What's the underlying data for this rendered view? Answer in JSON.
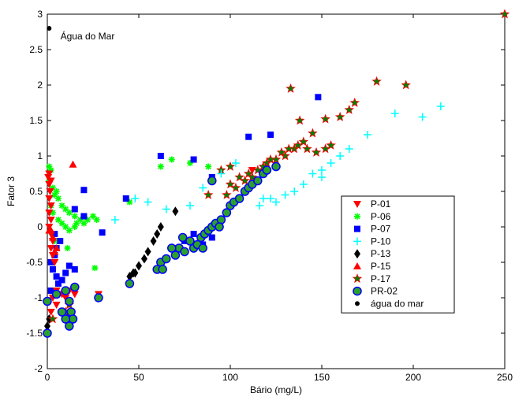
{
  "chart_data": {
    "type": "scatter",
    "title": "",
    "xlabel": "Bário (mg/L)",
    "ylabel": "Fator 3",
    "xlim": [
      0,
      250
    ],
    "ylim": [
      -2,
      3
    ],
    "xticks": [
      0,
      50,
      100,
      150,
      200,
      250
    ],
    "yticks": [
      -2,
      -1.5,
      -1,
      -0.5,
      0,
      0.5,
      1,
      1.5,
      2,
      2.5,
      3
    ],
    "grid": false,
    "legend_position": "lower-right",
    "annotation": {
      "text": "Água do Mar",
      "x": 2,
      "y": 2.8
    },
    "series": [
      {
        "name": "P-01",
        "marker": "triangle-down",
        "color": "#ff0000",
        "points": [
          [
            0.5,
            0.7
          ],
          [
            1,
            0.6
          ],
          [
            1,
            0.4
          ],
          [
            1.5,
            0.5
          ],
          [
            2,
            0.3
          ],
          [
            1,
            0.2
          ],
          [
            2,
            0.1
          ],
          [
            1,
            0
          ],
          [
            2,
            -0.1
          ],
          [
            3,
            -0.2
          ],
          [
            2,
            -0.3
          ],
          [
            3,
            -0.4
          ],
          [
            4,
            -0.5
          ],
          [
            5,
            -0.9
          ],
          [
            8,
            -0.95
          ],
          [
            10,
            -1.0
          ],
          [
            12,
            -0.9
          ],
          [
            15,
            -0.95
          ],
          [
            28,
            -0.95
          ],
          [
            5,
            -1.1
          ],
          [
            2,
            -1.2
          ],
          [
            3,
            -1.0
          ],
          [
            1,
            0.75
          ],
          [
            2,
            0.65
          ],
          [
            112,
            0.8
          ]
        ]
      },
      {
        "name": "P-06",
        "marker": "asterisk",
        "color": "#00ff00",
        "points": [
          [
            1,
            0.85
          ],
          [
            2,
            0.8
          ],
          [
            1,
            0.65
          ],
          [
            3,
            0.55
          ],
          [
            5,
            0.5
          ],
          [
            4,
            0.45
          ],
          [
            6,
            0.4
          ],
          [
            8,
            0.3
          ],
          [
            10,
            0.25
          ],
          [
            12,
            0.2
          ],
          [
            15,
            0.15
          ],
          [
            18,
            0.1
          ],
          [
            20,
            0.05
          ],
          [
            22,
            0.1
          ],
          [
            25,
            0.15
          ],
          [
            27,
            0.1
          ],
          [
            8,
            0.05
          ],
          [
            10,
            0
          ],
          [
            12,
            -0.05
          ],
          [
            15,
            0
          ],
          [
            16,
            0.05
          ],
          [
            6,
            0.1
          ],
          [
            3,
            0.2
          ],
          [
            2,
            0.3
          ],
          [
            45,
            0.35
          ],
          [
            62,
            0.85
          ],
          [
            68,
            0.95
          ],
          [
            78,
            0.9
          ],
          [
            88,
            0.85
          ],
          [
            26,
            -0.58
          ],
          [
            11,
            -0.3
          ],
          [
            4,
            -0.2
          ]
        ]
      },
      {
        "name": "P-07",
        "marker": "square",
        "color": "#0000ff",
        "points": [
          [
            20,
            0.52
          ],
          [
            15,
            0.25
          ],
          [
            20,
            0.15
          ],
          [
            30,
            -0.08
          ],
          [
            43,
            0.4
          ],
          [
            62,
            1.0
          ],
          [
            80,
            0.95
          ],
          [
            90,
            0.7
          ],
          [
            110,
            1.27
          ],
          [
            122,
            1.3
          ],
          [
            148,
            1.83
          ],
          [
            2,
            -0.5
          ],
          [
            3,
            -0.6
          ],
          [
            5,
            -0.7
          ],
          [
            6,
            -0.8
          ],
          [
            8,
            -0.75
          ],
          [
            10,
            -0.65
          ],
          [
            12,
            -0.55
          ],
          [
            15,
            -0.6
          ],
          [
            4,
            -0.4
          ],
          [
            5,
            -0.3
          ],
          [
            7,
            -0.2
          ],
          [
            2,
            -0.9
          ],
          [
            4,
            -0.1
          ],
          [
            70,
            -0.3
          ],
          [
            75,
            -0.2
          ],
          [
            80,
            -0.1
          ],
          [
            85,
            -0.25
          ],
          [
            90,
            -0.15
          ]
        ]
      },
      {
        "name": "P-10",
        "marker": "plus",
        "color": "#00ffff",
        "points": [
          [
            37,
            0.1
          ],
          [
            48,
            0.4
          ],
          [
            55,
            0.35
          ],
          [
            65,
            0.25
          ],
          [
            78,
            0.3
          ],
          [
            85,
            0.55
          ],
          [
            95,
            0.75
          ],
          [
            103,
            0.9
          ],
          [
            116,
            0.3
          ],
          [
            122,
            0.4
          ],
          [
            135,
            0.5
          ],
          [
            140,
            0.6
          ],
          [
            145,
            0.75
          ],
          [
            150,
            0.8
          ],
          [
            155,
            0.9
          ],
          [
            160,
            1.0
          ],
          [
            165,
            1.1
          ],
          [
            175,
            1.3
          ],
          [
            190,
            1.6
          ],
          [
            205,
            1.55
          ],
          [
            215,
            1.7
          ],
          [
            150,
            0.7
          ],
          [
            130,
            0.45
          ],
          [
            125,
            0.35
          ],
          [
            118,
            0.4
          ]
        ]
      },
      {
        "name": "P-13",
        "marker": "diamond",
        "color": "#000000",
        "points": [
          [
            70,
            0.22
          ],
          [
            62,
            0.0
          ],
          [
            58,
            -0.2
          ],
          [
            55,
            -0.35
          ],
          [
            53,
            -0.45
          ],
          [
            50,
            -0.55
          ],
          [
            48,
            -0.65
          ],
          [
            45,
            -0.7
          ],
          [
            47,
            -0.65
          ],
          [
            60,
            -0.1
          ],
          [
            0,
            -1.4
          ],
          [
            1,
            -1.3
          ]
        ]
      },
      {
        "name": "P-15",
        "marker": "triangle-up",
        "color": "#ff0000",
        "points": [
          [
            14,
            0.88
          ],
          [
            2,
            -0.05
          ],
          [
            3,
            -0.15
          ],
          [
            4,
            -0.35
          ],
          [
            5,
            -0.3
          ],
          [
            1,
            -0.05
          ]
        ]
      },
      {
        "name": "P-17",
        "marker": "star",
        "color": "#008000",
        "edgecolor": "#ff0000",
        "points": [
          [
            250,
            3.0
          ],
          [
            180,
            2.05
          ],
          [
            196,
            2.0
          ],
          [
            168,
            1.75
          ],
          [
            165,
            1.65
          ],
          [
            160,
            1.55
          ],
          [
            152,
            1.52
          ],
          [
            145,
            1.32
          ],
          [
            133,
            1.95
          ],
          [
            138,
            1.5
          ],
          [
            140,
            1.2
          ],
          [
            135,
            1.1
          ],
          [
            130,
            1.0
          ],
          [
            125,
            0.95
          ],
          [
            120,
            0.9
          ],
          [
            115,
            0.8
          ],
          [
            110,
            0.75
          ],
          [
            105,
            0.7
          ],
          [
            100,
            0.6
          ],
          [
            98,
            0.45
          ],
          [
            103,
            0.55
          ],
          [
            108,
            0.65
          ],
          [
            112,
            0.7
          ],
          [
            118,
            0.85
          ],
          [
            122,
            0.95
          ],
          [
            128,
            1.05
          ],
          [
            132,
            1.1
          ],
          [
            137,
            1.15
          ],
          [
            142,
            1.1
          ],
          [
            147,
            1.05
          ],
          [
            152,
            1.1
          ],
          [
            155,
            1.15
          ],
          [
            100,
            0.85
          ],
          [
            95,
            0.8
          ],
          [
            88,
            0.45
          ],
          [
            3,
            -1.3
          ],
          [
            10,
            -1.2
          ],
          [
            12,
            -1.1
          ]
        ]
      },
      {
        "name": "PR-02",
        "marker": "circle",
        "color": "#2ca02c",
        "edgecolor": "#0000ff",
        "points": [
          [
            0,
            -1.5
          ],
          [
            0,
            -1.05
          ],
          [
            5,
            -0.95
          ],
          [
            10,
            -0.9
          ],
          [
            15,
            -0.85
          ],
          [
            12,
            -1.05
          ],
          [
            13,
            -1.2
          ],
          [
            14,
            -1.3
          ],
          [
            12,
            -1.4
          ],
          [
            8,
            -1.2
          ],
          [
            10,
            -1.3
          ],
          [
            28,
            -1.0
          ],
          [
            45,
            -0.8
          ],
          [
            60,
            -0.6
          ],
          [
            62,
            -0.5
          ],
          [
            65,
            -0.45
          ],
          [
            70,
            -0.4
          ],
          [
            72,
            -0.3
          ],
          [
            75,
            -0.35
          ],
          [
            78,
            -0.2
          ],
          [
            80,
            -0.3
          ],
          [
            82,
            -0.25
          ],
          [
            84,
            -0.15
          ],
          [
            86,
            -0.1
          ],
          [
            88,
            -0.05
          ],
          [
            90,
            0.0
          ],
          [
            92,
            0.05
          ],
          [
            95,
            0.1
          ],
          [
            98,
            0.2
          ],
          [
            100,
            0.3
          ],
          [
            102,
            0.35
          ],
          [
            105,
            0.4
          ],
          [
            108,
            0.5
          ],
          [
            110,
            0.55
          ],
          [
            112,
            0.6
          ],
          [
            115,
            0.65
          ],
          [
            118,
            0.75
          ],
          [
            120,
            0.8
          ],
          [
            125,
            0.85
          ],
          [
            90,
            0.65
          ],
          [
            68,
            -0.3
          ],
          [
            74,
            -0.15
          ],
          [
            85,
            -0.3
          ],
          [
            94,
            0.0
          ],
          [
            63,
            -0.6
          ]
        ]
      },
      {
        "name": "água do mar",
        "marker": "dot",
        "color": "#000000",
        "points": [
          [
            1,
            2.8
          ]
        ]
      }
    ]
  }
}
